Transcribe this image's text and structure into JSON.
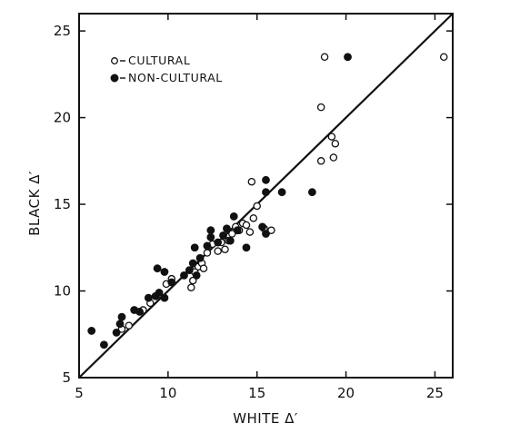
{
  "chart_data": {
    "type": "scatter",
    "xlabel": "WHITE Δ′",
    "ylabel": "BLACK Δ′",
    "xlim": [
      5,
      26
    ],
    "ylim": [
      5,
      26
    ],
    "x_ticks": [
      5,
      10,
      15,
      20,
      25
    ],
    "y_ticks": [
      5,
      10,
      15,
      20,
      25
    ],
    "grid": false,
    "legend_placement": "top-left",
    "reference_line": {
      "from": [
        5,
        5
      ],
      "to": [
        26,
        26
      ]
    },
    "series": [
      {
        "name": "CULTURAL",
        "marker": "open-circle",
        "points": [
          [
            7.4,
            7.8
          ],
          [
            7.8,
            8.0
          ],
          [
            8.6,
            8.9
          ],
          [
            9.0,
            9.3
          ],
          [
            9.5,
            9.8
          ],
          [
            9.9,
            10.4
          ],
          [
            10.2,
            10.7
          ],
          [
            11.3,
            10.2
          ],
          [
            11.4,
            10.6
          ],
          [
            11.5,
            11.1
          ],
          [
            11.7,
            11.4
          ],
          [
            11.9,
            11.6
          ],
          [
            12.0,
            11.3
          ],
          [
            12.2,
            12.2
          ],
          [
            12.5,
            12.7
          ],
          [
            12.8,
            12.3
          ],
          [
            13.0,
            12.8
          ],
          [
            13.2,
            12.4
          ],
          [
            13.4,
            12.9
          ],
          [
            13.6,
            13.3
          ],
          [
            13.8,
            13.7
          ],
          [
            14.0,
            13.5
          ],
          [
            14.2,
            13.9
          ],
          [
            14.4,
            13.8
          ],
          [
            14.6,
            13.4
          ],
          [
            14.8,
            14.2
          ],
          [
            15.0,
            14.9
          ],
          [
            15.4,
            13.6
          ],
          [
            15.8,
            13.5
          ],
          [
            14.7,
            16.3
          ],
          [
            18.6,
            20.6
          ],
          [
            18.8,
            23.5
          ],
          [
            18.6,
            17.5
          ],
          [
            19.2,
            18.9
          ],
          [
            19.4,
            18.5
          ],
          [
            19.3,
            17.7
          ],
          [
            25.5,
            23.5
          ]
        ]
      },
      {
        "name": "NON-CULTURAL",
        "marker": "filled-circle",
        "points": [
          [
            5.7,
            7.7
          ],
          [
            6.4,
            6.9
          ],
          [
            7.1,
            7.6
          ],
          [
            7.3,
            8.1
          ],
          [
            7.4,
            8.5
          ],
          [
            8.1,
            8.9
          ],
          [
            8.4,
            8.8
          ],
          [
            8.9,
            9.6
          ],
          [
            9.3,
            9.7
          ],
          [
            9.5,
            9.9
          ],
          [
            9.8,
            9.6
          ],
          [
            9.4,
            11.3
          ],
          [
            9.8,
            11.1
          ],
          [
            10.2,
            10.5
          ],
          [
            10.9,
            10.9
          ],
          [
            11.2,
            11.2
          ],
          [
            11.4,
            11.6
          ],
          [
            11.6,
            10.9
          ],
          [
            11.8,
            11.9
          ],
          [
            11.5,
            12.5
          ],
          [
            12.2,
            12.6
          ],
          [
            12.4,
            13.1
          ],
          [
            12.4,
            13.5
          ],
          [
            12.8,
            12.8
          ],
          [
            13.1,
            13.2
          ],
          [
            13.3,
            13.6
          ],
          [
            13.5,
            12.9
          ],
          [
            13.7,
            14.3
          ],
          [
            13.9,
            13.5
          ],
          [
            14.4,
            12.5
          ],
          [
            15.3,
            13.7
          ],
          [
            15.5,
            13.3
          ],
          [
            15.5,
            15.7
          ],
          [
            15.5,
            16.4
          ],
          [
            16.4,
            15.7
          ],
          [
            18.1,
            15.7
          ],
          [
            20.1,
            23.5
          ]
        ]
      }
    ]
  }
}
